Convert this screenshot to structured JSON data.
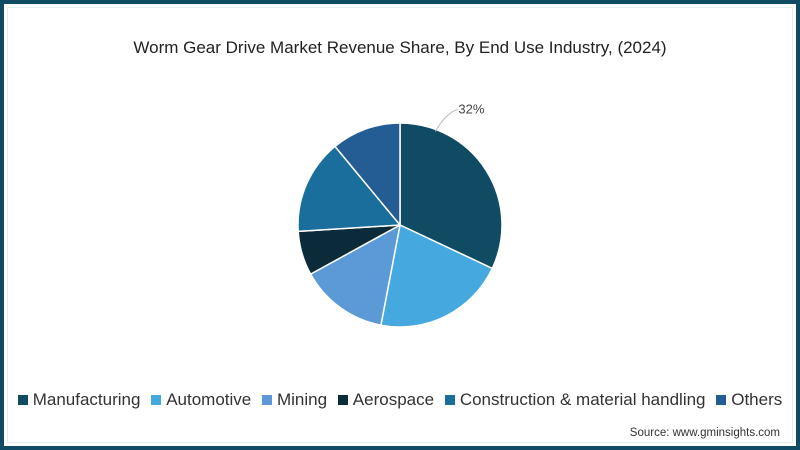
{
  "title": "Worm Gear Drive Market Revenue Share, By End Use Industry, (2024)",
  "source": "Source: www.gminsights.com",
  "colors": {
    "frame": "#0f4c64",
    "background": "#ffffff"
  },
  "chart_data": {
    "type": "pie",
    "title": "Worm Gear Drive Market Revenue Share, By End Use Industry, (2024)",
    "categories": [
      "Manufacturing",
      "Automotive",
      "Mining",
      "Aerospace",
      "Construction & material handling",
      "Others"
    ],
    "values": [
      32,
      21,
      14,
      7,
      15,
      11
    ],
    "unit": "%",
    "colors": [
      "#0f4c64",
      "#45a9e0",
      "#5b9ad6",
      "#0b2a3a",
      "#1a6e9c",
      "#245c94"
    ],
    "data_labels": [
      {
        "category": "Manufacturing",
        "text": "32%"
      }
    ],
    "start_angle_deg": 0,
    "direction": "clockwise",
    "legend_position": "bottom"
  },
  "legend": {
    "items": [
      {
        "label": "Manufacturing",
        "color": "#0f4c64"
      },
      {
        "label": "Automotive",
        "color": "#45a9e0"
      },
      {
        "label": "Mining",
        "color": "#5b9ad6"
      },
      {
        "label": "Aerospace",
        "color": "#0b2a3a"
      },
      {
        "label": "Construction & material handling",
        "color": "#1a6e9c"
      },
      {
        "label": "Others",
        "color": "#245c94"
      }
    ]
  }
}
